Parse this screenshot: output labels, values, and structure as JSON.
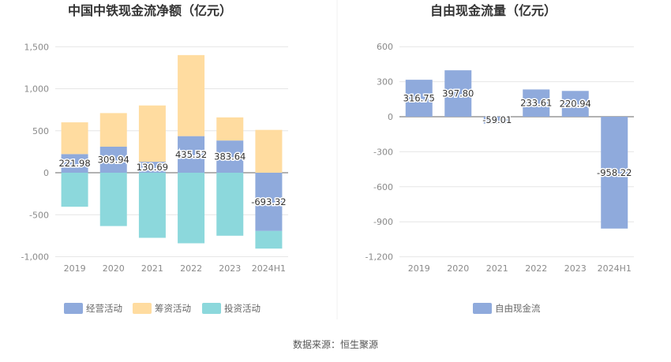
{
  "source_label": "数据来源：恒生聚源",
  "chart_data": [
    {
      "type": "bar",
      "title": "中国中铁现金流净额（亿元）",
      "categories": [
        "2019",
        "2020",
        "2021",
        "2022",
        "2023",
        "2024H1"
      ],
      "ylim": [
        -1000,
        1500
      ],
      "yticks": [
        "-1,000",
        "-500",
        "0",
        "500",
        "1,000",
        "1,500"
      ],
      "ytick_values": [
        -1000,
        -500,
        0,
        500,
        1000,
        1500
      ],
      "grid": true,
      "legend_position": "bottom",
      "series": [
        {
          "name": "经营活动",
          "color": "#8faadc",
          "values": [
            221.98,
            309.94,
            130.69,
            435.52,
            383.64,
            -693.32
          ]
        },
        {
          "name": "筹资活动",
          "color": "#ffdca0",
          "values": [
            378,
            400,
            670,
            965,
            275,
            510
          ]
        },
        {
          "name": "投资活动",
          "color": "#8cd8dc",
          "values": [
            -405,
            -635,
            -775,
            -840,
            -750,
            -210
          ]
        }
      ],
      "data_labels": [
        "221.98",
        "309.94",
        "130.69",
        "435.52",
        "383.64",
        "-693.32"
      ]
    },
    {
      "type": "bar",
      "title": "自由现金流量（亿元）",
      "categories": [
        "2019",
        "2020",
        "2021",
        "2022",
        "2023",
        "2024H1"
      ],
      "ylim": [
        -1200,
        600
      ],
      "yticks": [
        "-1,200",
        "-900",
        "-600",
        "-300",
        "0",
        "300",
        "600"
      ],
      "ytick_values": [
        -1200,
        -900,
        -600,
        -300,
        0,
        300,
        600
      ],
      "grid": true,
      "legend_position": "bottom",
      "series": [
        {
          "name": "自由现金流",
          "color": "#8faadc",
          "values": [
            316.75,
            397.8,
            -59.01,
            233.61,
            220.94,
            -958.22
          ]
        }
      ],
      "data_labels": [
        "316.75",
        "397.80",
        "-59.01",
        "233.61",
        "220.94",
        "-958.22"
      ]
    }
  ]
}
